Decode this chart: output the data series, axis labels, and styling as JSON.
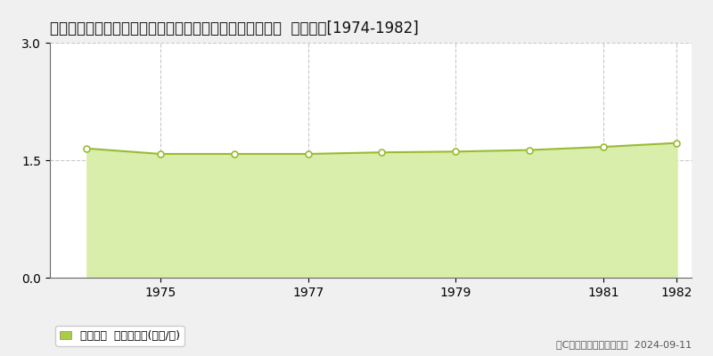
{
  "title": "青森県南津軽郡藤崎町大字中野目字葛巻７番１　地価公示  地価推移[1974-1982]",
  "years": [
    1974,
    1975,
    1976,
    1977,
    1978,
    1979,
    1980,
    1981,
    1982
  ],
  "values": [
    1.65,
    1.58,
    1.58,
    1.58,
    1.6,
    1.61,
    1.63,
    1.67,
    1.72
  ],
  "ylim": [
    0,
    3
  ],
  "yticks": [
    0,
    1.5,
    3
  ],
  "xticks": [
    1975,
    1977,
    1979,
    1981,
    1982
  ],
  "line_color": "#99bb33",
  "fill_color": "#d8eeaa",
  "marker_facecolor": "#ffffff",
  "marker_edgecolor": "#99bb33",
  "grid_color": "#bbbbbb",
  "plot_bg_color": "#ffffff",
  "fig_bg_color": "#f0f0f0",
  "legend_label": "地価公示  平均坪単価(万円/坪)",
  "legend_marker_color": "#aacc44",
  "copyright_text": "（C）土地価格ドットコム  2024-09-11",
  "title_fontsize": 12,
  "tick_fontsize": 10,
  "legend_fontsize": 9,
  "copyright_fontsize": 8
}
